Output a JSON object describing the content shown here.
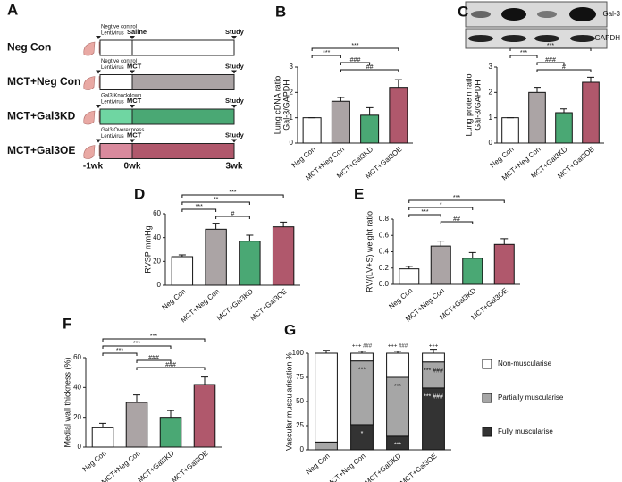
{
  "diagram": {
    "panel": "A",
    "rows": [
      {
        "label": "Neg Con",
        "vector": [
          "Negtive control",
          "Lentivirus"
        ],
        "treatment": "Saline",
        "endpoint": "Study",
        "colors": [
          "#ffffff",
          "#ffffff"
        ]
      },
      {
        "label": "MCT+Neg Con",
        "vector": [
          "Negtive control",
          "Lentivirus"
        ],
        "treatment": "MCT",
        "endpoint": "Study",
        "colors": [
          "#ffffff",
          "#aba4a5"
        ]
      },
      {
        "label": "MCT+Gal3KD",
        "vector": [
          "Gal3 Knockdown",
          "Lentivirus"
        ],
        "treatment": "MCT",
        "endpoint": "Study",
        "colors": [
          "#6fd6a2",
          "#4aa874"
        ]
      },
      {
        "label": "MCT+Gal3OE",
        "vector": [
          "Gal3 Overexpress",
          "Lentivirus"
        ],
        "treatment": "MCT",
        "endpoint": "Study",
        "colors": [
          "#d98a9d",
          "#b0586c"
        ]
      }
    ],
    "timepoints": [
      "-1wk",
      "0wk",
      "3wk"
    ]
  },
  "chart_data": [
    {
      "type": "bar",
      "panel": "B",
      "ylabel": [
        "Lung cDNA ratio",
        "Gal-3/GAPDH"
      ],
      "categories": [
        "Neg Con",
        "MCT+Neg Con",
        "MCT+Gal3KD",
        "MCT+Gal3OE"
      ],
      "values": [
        1.0,
        1.65,
        1.1,
        2.2
      ],
      "errors": [
        0,
        0.15,
        0.3,
        0.3
      ],
      "colors": [
        "#ffffff",
        "#aba4a5",
        "#4aa874",
        "#b0586c"
      ],
      "ylim": [
        0,
        3
      ],
      "yticks": [
        0,
        1,
        2,
        3
      ],
      "brackets": [
        {
          "label": "***",
          "from": 0,
          "to": 3
        },
        {
          "label": "***",
          "from": 0,
          "to": 1
        },
        {
          "label": "###",
          "from": 1,
          "to": 2
        },
        {
          "label": "##",
          "from": 1,
          "to": 3
        }
      ]
    },
    {
      "type": "bar",
      "panel": "C",
      "ylabel": [
        "Lung protein ratio",
        "Gal-3/GAPDH"
      ],
      "blot_labels": [
        "Gal-3",
        "GAPDH"
      ],
      "categories": [
        "Neg Con",
        "MCT+Neg Con",
        "MCT+Gal3KD",
        "MCT+Gal3OE"
      ],
      "values": [
        1.0,
        2.0,
        1.2,
        2.4
      ],
      "errors": [
        0,
        0.2,
        0.15,
        0.2
      ],
      "colors": [
        "#ffffff",
        "#aba4a5",
        "#4aa874",
        "#b0586c"
      ],
      "ylim": [
        0,
        3
      ],
      "yticks": [
        0,
        1,
        2,
        3
      ],
      "brackets": [
        {
          "label": "***",
          "from": 0,
          "to": 3
        },
        {
          "label": "***",
          "from": 0,
          "to": 1
        },
        {
          "label": "###",
          "from": 1,
          "to": 2
        },
        {
          "label": "#",
          "from": 1,
          "to": 3
        }
      ]
    },
    {
      "type": "bar",
      "panel": "D",
      "ylabel": "RVSP mmHg",
      "categories": [
        "Neg Con",
        "MCT+Neg Con",
        "MCT+Gal3KD",
        "MCT+Gal3OE"
      ],
      "values": [
        24,
        47,
        37,
        49
      ],
      "errors": [
        1.5,
        5,
        5,
        4
      ],
      "colors": [
        "#ffffff",
        "#aba4a5",
        "#4aa874",
        "#b0586c"
      ],
      "ylim": [
        0,
        60
      ],
      "yticks": [
        0,
        20,
        40,
        60
      ],
      "brackets": [
        {
          "label": "***",
          "from": 0,
          "to": 3
        },
        {
          "label": "**",
          "from": 0,
          "to": 2
        },
        {
          "label": "***",
          "from": 0,
          "to": 1
        },
        {
          "label": "#",
          "from": 1,
          "to": 2
        }
      ]
    },
    {
      "type": "bar",
      "panel": "E",
      "ylabel": "RV/(LV+S) weight ratio",
      "categories": [
        "Neg Con",
        "MCT+Neg Con",
        "MCT+Gal3KD",
        "MCT+Gal3OE"
      ],
      "values": [
        0.19,
        0.47,
        0.32,
        0.49
      ],
      "errors": [
        0.03,
        0.06,
        0.07,
        0.07
      ],
      "colors": [
        "#ffffff",
        "#aba4a5",
        "#4aa874",
        "#b0586c"
      ],
      "ylim": [
        0,
        0.8
      ],
      "yticks": [
        {
          "value": 0,
          "label": "0.0"
        },
        0.2,
        0.4,
        0.6,
        0.8
      ],
      "brackets": [
        {
          "label": "***",
          "from": 0,
          "to": 3
        },
        {
          "label": "*",
          "from": 0,
          "to": 2
        },
        {
          "label": "***",
          "from": 0,
          "to": 1
        },
        {
          "label": "##",
          "from": 1,
          "to": 2
        }
      ]
    },
    {
      "type": "bar",
      "panel": "F",
      "ylabel": "Medial wall thickness (%)",
      "categories": [
        "Neg Con",
        "MCT+Neg Con",
        "MCT+Gal3KD",
        "MCT+Gal3OE"
      ],
      "values": [
        13,
        30,
        20,
        42
      ],
      "errors": [
        3,
        5,
        4.5,
        5
      ],
      "colors": [
        "#ffffff",
        "#aba4a5",
        "#4aa874",
        "#b0586c"
      ],
      "ylim": [
        0,
        60
      ],
      "yticks": [
        0,
        20,
        40,
        60
      ],
      "brackets": [
        {
          "label": "***",
          "from": 0,
          "to": 3
        },
        {
          "label": "***",
          "from": 0,
          "to": 2
        },
        {
          "label": "***",
          "from": 0,
          "to": 1
        },
        {
          "label": "###",
          "from": 1,
          "to": 2
        },
        {
          "label": "###",
          "from": 1,
          "to": 3
        }
      ]
    },
    {
      "type": "stacked_bar",
      "panel": "G",
      "ylabel": "Vascular muscularisation %",
      "categories": [
        "Neg Con",
        "MCT+Neg Con",
        "MCT+Gal3KD",
        "MCT+Gal3OE"
      ],
      "ylim": [
        0,
        100
      ],
      "yticks": [
        0,
        25,
        50,
        75,
        100
      ],
      "top_labels": [
        null,
        "+++ ###",
        "+++ ###",
        "+++"
      ],
      "series": [
        {
          "name": "Fully muscularise",
          "color": "#333333",
          "values": [
            0,
            26,
            14,
            64
          ],
          "errors": [
            0,
            6,
            3,
            4
          ],
          "significance": [
            null,
            "*",
            "***",
            "*** ###"
          ]
        },
        {
          "name": "Partially muscularise",
          "color": "#a6a6a6",
          "values": [
            8,
            66,
            61,
            27
          ],
          "errors": [
            3,
            3,
            2,
            3
          ],
          "significance": [
            null,
            "***",
            "***",
            "*** ###"
          ]
        },
        {
          "name": "Non-muscularise",
          "color": "#ffffff",
          "values": [
            92,
            8,
            25,
            9
          ],
          "errors": [
            3,
            2,
            2,
            4
          ],
          "significance": [
            null,
            null,
            null,
            null
          ]
        }
      ]
    }
  ]
}
